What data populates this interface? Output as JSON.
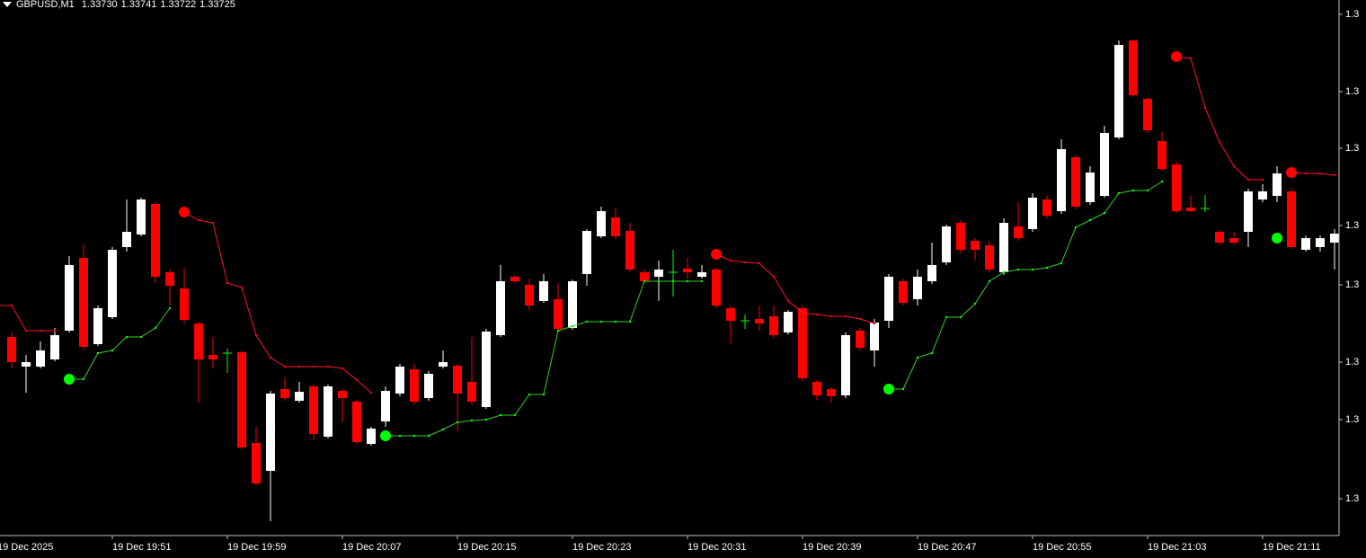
{
  "chart_data": {
    "type": "candlestick",
    "title": "GBPUSD,M1",
    "header_values": [
      "1.33730",
      "1.33741",
      "1.33722",
      "1.33725"
    ],
    "background": "#000000",
    "up_color": "#ffffff",
    "down_color": "#ff0000",
    "doji_color": "#00ff00",
    "ylim": [
      1.33399,
      1.33995
    ],
    "yticks": [
      {
        "value": 1.33979,
        "label": "1.3"
      },
      {
        "value": 1.33893,
        "label": "1.3"
      },
      {
        "value": 1.3383,
        "label": "1.3"
      },
      {
        "value": 1.33744,
        "label": "1.3"
      },
      {
        "value": 1.33678,
        "label": "1.3"
      },
      {
        "value": 1.33592,
        "label": "1.3"
      },
      {
        "value": 1.33528,
        "label": "1.3"
      },
      {
        "value": 1.3344,
        "label": "1.3"
      }
    ],
    "categories": [
      "19 Dec 2025",
      null,
      null,
      null,
      null,
      null,
      null,
      null,
      "19 Dec 19:51",
      null,
      null,
      null,
      null,
      null,
      null,
      null,
      "19 Dec 19:59",
      null,
      null,
      null,
      null,
      null,
      null,
      null,
      "19 Dec 20:07",
      null,
      null,
      null,
      null,
      null,
      null,
      null,
      "19 Dec 20:15",
      null,
      null,
      null,
      null,
      null,
      null,
      null,
      "19 Dec 20:23",
      null,
      null,
      null,
      null,
      null,
      null,
      null,
      "19 Dec 20:31",
      null,
      null,
      null,
      null,
      null,
      null,
      null,
      "19 Dec 20:39",
      null,
      null,
      null,
      null,
      null,
      null,
      null,
      "19 Dec 20:47",
      null,
      null,
      null,
      null,
      null,
      null,
      null,
      "19 Dec 20:55",
      null,
      null,
      null,
      null,
      null,
      null,
      null,
      "19 Dec 21:03",
      null,
      null,
      null,
      null,
      null,
      null,
      null,
      "19 Dec 21:11",
      null,
      null,
      null,
      null,
      null
    ],
    "open": [
      null,
      1.3362,
      1.33587,
      1.33587,
      1.33595,
      1.33627,
      1.33708,
      1.33612,
      1.33642,
      1.3372,
      1.33734,
      1.33768,
      1.33692,
      1.33674,
      1.33635,
      1.336,
      1.33602,
      1.33603,
      1.33502,
      1.33471,
      1.33562,
      1.33549,
      1.33565,
      1.33509,
      1.3356,
      1.33548,
      1.33501,
      1.33526,
      1.33557,
      1.33584,
      1.33552,
      1.33587,
      1.33588,
      1.3357,
      1.33542,
      1.33622,
      1.33687,
      1.33678,
      1.3366,
      1.33662,
      1.3363,
      1.3369,
      1.33732,
      1.33753,
      1.33738,
      1.33692,
      1.33687,
      1.33692,
      1.33696,
      1.33687,
      1.33695,
      1.33652,
      1.33638,
      1.3364,
      1.33643,
      1.33625,
      1.33652,
      1.3357,
      1.33562,
      1.33555,
      1.33627,
      1.33605,
      1.33638,
      1.33682,
      1.33662,
      1.33682,
      1.33703,
      1.33747,
      1.33727,
      1.33722,
      1.33692,
      1.33743,
      1.3374,
      1.33773,
      1.3376,
      1.3382,
      1.3377,
      1.33777,
      1.33842,
      1.3395,
      1.33885,
      1.33838,
      1.33812,
      1.33764,
      1.33763,
      1.33737,
      1.3373,
      1.33737,
      1.33773,
      1.33777,
      1.33782,
      1.33717,
      1.3372,
      1.33725
    ],
    "high": [
      null,
      1.33625,
      1.336,
      1.33615,
      1.3363,
      1.3371,
      1.33723,
      1.33655,
      1.3372,
      1.33773,
      1.33775,
      1.3377,
      1.33695,
      1.33697,
      1.33637,
      1.3362,
      1.33607,
      1.33605,
      1.3352,
      1.3356,
      1.33575,
      1.3357,
      1.33567,
      1.33567,
      1.33562,
      1.3355,
      1.3352,
      1.33565,
      1.3359,
      1.3359,
      1.33582,
      1.33605,
      1.3359,
      1.3362,
      1.33629,
      1.337,
      1.33689,
      1.33685,
      1.3369,
      1.3368,
      1.33684,
      1.3374,
      1.33765,
      1.33763,
      1.33747,
      1.33695,
      1.33705,
      1.33717,
      1.33708,
      1.337,
      1.33697,
      1.33655,
      1.33645,
      1.33655,
      1.33655,
      1.3365,
      1.33655,
      1.33572,
      1.33564,
      1.33625,
      1.3363,
      1.3364,
      1.3369,
      1.33685,
      1.33695,
      1.33725,
      1.33745,
      1.3375,
      1.3373,
      1.33727,
      1.33752,
      1.3377,
      1.3378,
      1.33777,
      1.3384,
      1.33823,
      1.3381,
      1.33855,
      1.3395,
      1.3395,
      1.33887,
      1.33848,
      1.33815,
      1.33777,
      1.33778,
      1.33739,
      1.33737,
      1.33785,
      1.3379,
      1.3381,
      1.33785,
      1.33733,
      1.33733,
      1.3374
    ],
    "low": [
      null,
      1.33585,
      1.33558,
      1.33585,
      1.33593,
      1.33625,
      1.33605,
      1.3361,
      1.3364,
      1.33715,
      1.33732,
      1.3368,
      1.33655,
      1.33635,
      1.33547,
      1.33585,
      1.3358,
      1.33495,
      1.33455,
      1.33415,
      1.33549,
      1.33547,
      1.33505,
      1.33507,
      1.33525,
      1.33501,
      1.33499,
      1.3352,
      1.33554,
      1.33545,
      1.33549,
      1.33585,
      1.33515,
      1.33545,
      1.3354,
      1.3362,
      1.3368,
      1.3365,
      1.33658,
      1.33627,
      1.33628,
      1.33677,
      1.3373,
      1.33729,
      1.33693,
      1.3368,
      1.3366,
      1.33665,
      1.33685,
      1.33685,
      1.33652,
      1.33613,
      1.33629,
      1.33627,
      1.33619,
      1.33623,
      1.33571,
      1.3355,
      1.33547,
      1.33552,
      1.33605,
      1.33587,
      1.3363,
      1.33655,
      1.33655,
      1.33679,
      1.337,
      1.33713,
      1.33705,
      1.33692,
      1.33689,
      1.33727,
      1.33737,
      1.33752,
      1.33757,
      1.33762,
      1.33767,
      1.33775,
      1.3384,
      1.33887,
      1.33847,
      1.33805,
      1.33758,
      1.33759,
      1.33759,
      1.33723,
      1.33723,
      1.3372,
      1.3377,
      1.3377,
      1.33718,
      1.33715,
      1.33715,
      1.33695
    ],
    "close": [
      null,
      1.33592,
      1.33592,
      1.33605,
      1.33622,
      1.337,
      1.33609,
      1.33652,
      1.33717,
      1.33737,
      1.33773,
      1.33687,
      1.33677,
      1.33639,
      1.33595,
      1.33595,
      1.33602,
      1.33497,
      1.33457,
      1.33557,
      1.33552,
      1.33559,
      1.33512,
      1.33565,
      1.33552,
      1.33503,
      1.33518,
      1.3356,
      1.33587,
      1.33548,
      1.33579,
      1.33592,
      1.33557,
      1.33548,
      1.33626,
      1.33682,
      1.33682,
      1.33655,
      1.33682,
      1.33629,
      1.33682,
      1.33738,
      1.3376,
      1.33732,
      1.33695,
      1.33682,
      1.33695,
      1.33692,
      1.33692,
      1.33692,
      1.33655,
      1.33638,
      1.33638,
      1.33635,
      1.33622,
      1.33648,
      1.33574,
      1.33555,
      1.33554,
      1.33622,
      1.33608,
      1.33636,
      1.33687,
      1.33658,
      1.33687,
      1.337,
      1.33743,
      1.33717,
      1.33717,
      1.33695,
      1.33747,
      1.3373,
      1.33775,
      1.33755,
      1.33829,
      1.33765,
      1.33803,
      1.33847,
      1.33945,
      1.33889,
      1.3385,
      1.33807,
      1.3376,
      1.3376,
      1.33763,
      1.33725,
      1.33725,
      1.33782,
      1.33782,
      1.33802,
      1.3372,
      1.3373,
      1.3373,
      1.33735
    ],
    "support": {
      "color": "#32cd32",
      "dot_color": "#00ff00",
      "values": [
        null,
        null,
        null,
        null,
        null,
        1.33573,
        1.33573,
        1.33602,
        1.33605,
        1.3362,
        1.3362,
        1.3363,
        1.33652,
        null,
        null,
        null,
        null,
        null,
        null,
        null,
        null,
        null,
        null,
        null,
        null,
        null,
        null,
        1.3351,
        1.3351,
        1.3351,
        1.3351,
        1.33517,
        1.33525,
        1.33527,
        1.33528,
        1.33533,
        1.33533,
        1.33556,
        1.33556,
        1.33627,
        1.33632,
        1.33637,
        1.33637,
        1.33637,
        1.33637,
        1.33682,
        1.33682,
        1.33682,
        1.33682,
        1.33682,
        null,
        null,
        null,
        null,
        null,
        null,
        null,
        null,
        null,
        null,
        null,
        null,
        1.33562,
        1.33562,
        1.33597,
        1.33602,
        1.33642,
        1.33642,
        1.33657,
        1.33682,
        1.33692,
        1.33695,
        1.33695,
        1.33697,
        1.33702,
        1.33742,
        1.3375,
        1.33758,
        1.3378,
        1.33783,
        1.33783,
        1.33793,
        null,
        null,
        null,
        null,
        null,
        null,
        null,
        1.3373,
        null,
        null,
        null,
        null
      ]
    },
    "resistance": {
      "color": "#ff1030",
      "dot_color": "#ff0000",
      "values": [
        1.33655,
        1.33655,
        1.33627,
        1.33627,
        1.33627,
        null,
        null,
        null,
        null,
        null,
        null,
        null,
        null,
        1.33759,
        1.3375,
        1.33747,
        1.3368,
        1.33675,
        1.33622,
        1.33597,
        1.33587,
        1.33587,
        1.33587,
        1.33587,
        1.33585,
        1.33572,
        1.33558,
        null,
        null,
        null,
        null,
        null,
        null,
        null,
        null,
        null,
        null,
        null,
        null,
        null,
        null,
        null,
        null,
        null,
        null,
        null,
        null,
        null,
        null,
        null,
        1.33712,
        1.33705,
        1.33703,
        1.33702,
        1.33687,
        1.3366,
        1.33647,
        1.33645,
        1.33643,
        1.33643,
        1.3364,
        1.33635,
        null,
        null,
        null,
        null,
        null,
        null,
        null,
        null,
        null,
        null,
        null,
        null,
        null,
        null,
        null,
        null,
        null,
        null,
        null,
        null,
        1.33932,
        1.3393,
        1.33875,
        1.33837,
        1.3381,
        1.33795,
        1.33795,
        null,
        1.33803,
        1.33802,
        1.33802,
        1.338
      ]
    }
  }
}
